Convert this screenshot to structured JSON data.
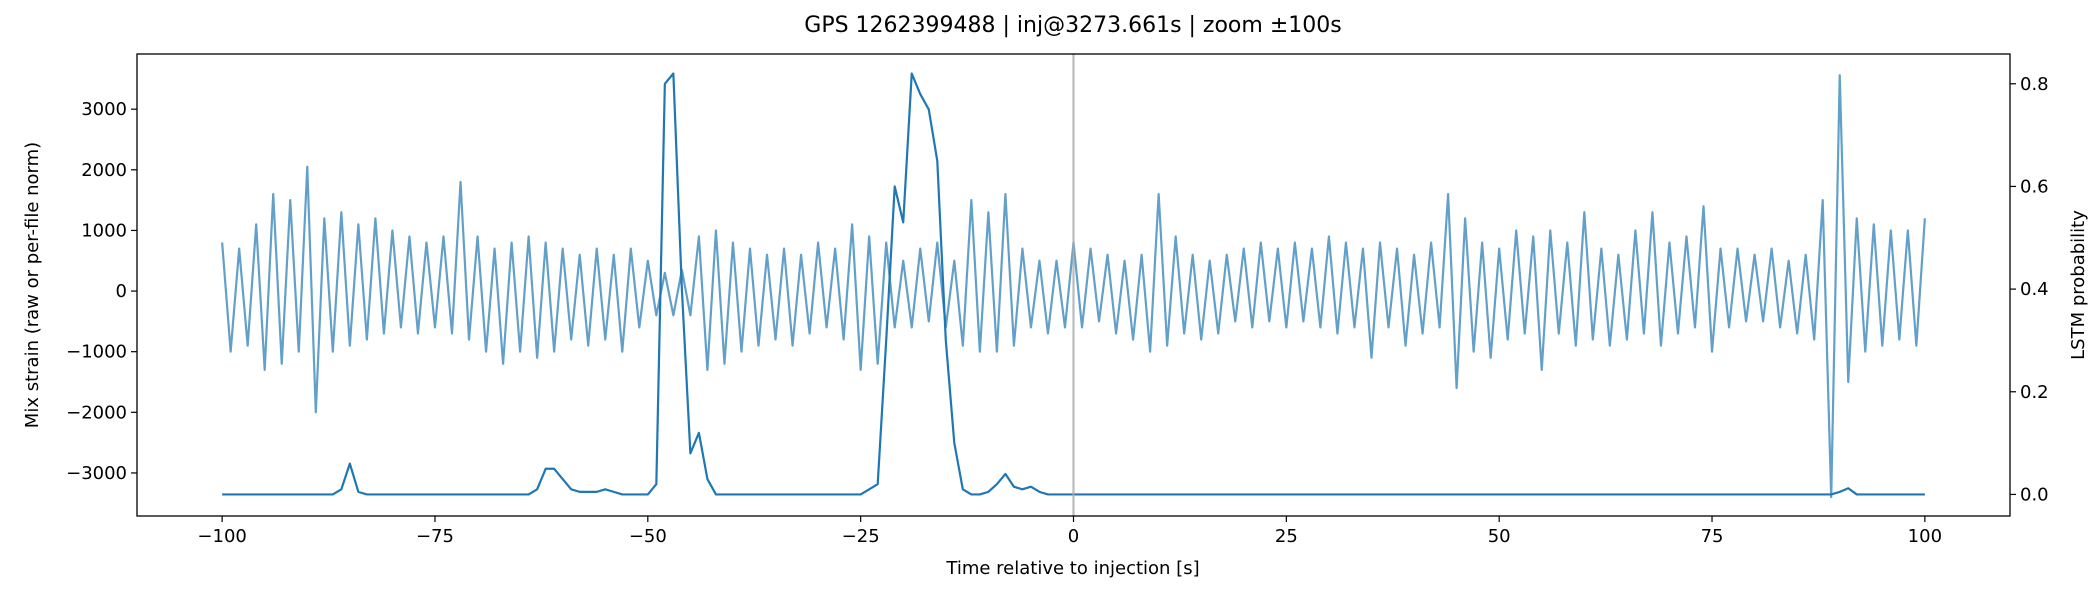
{
  "chart_data": {
    "type": "line",
    "title": "GPS 1262399488 | inj@3273.661s | zoom ±100s",
    "x_label": "Time relative to injection [s]",
    "y_label": "Mix strain (raw or per-file norm)",
    "y2_label": "LSTM probability",
    "x": [
      -100,
      -99,
      -98,
      -97,
      -96,
      -95,
      -94,
      -93,
      -92,
      -91,
      -90,
      -89,
      -88,
      -87,
      -86,
      -85,
      -84,
      -83,
      -82,
      -81,
      -80,
      -79,
      -78,
      -77,
      -76,
      -75,
      -74,
      -73,
      -72,
      -71,
      -70,
      -69,
      -68,
      -67,
      -66,
      -65,
      -64,
      -63,
      -62,
      -61,
      -60,
      -59,
      -58,
      -57,
      -56,
      -55,
      -54,
      -53,
      -52,
      -51,
      -50,
      -49,
      -48,
      -47,
      -46,
      -45,
      -44,
      -43,
      -42,
      -41,
      -40,
      -39,
      -38,
      -37,
      -36,
      -35,
      -34,
      -33,
      -32,
      -31,
      -30,
      -29,
      -28,
      -27,
      -26,
      -25,
      -24,
      -23,
      -22,
      -21,
      -20,
      -19,
      -18,
      -17,
      -16,
      -15,
      -14,
      -13,
      -12,
      -11,
      -10,
      -9,
      -8,
      -7,
      -6,
      -5,
      -4,
      -3,
      -2,
      -1,
      0,
      1,
      2,
      3,
      4,
      5,
      6,
      7,
      8,
      9,
      10,
      11,
      12,
      13,
      14,
      15,
      16,
      17,
      18,
      19,
      20,
      21,
      22,
      23,
      24,
      25,
      26,
      27,
      28,
      29,
      30,
      31,
      32,
      33,
      34,
      35,
      36,
      37,
      38,
      39,
      40,
      41,
      42,
      43,
      44,
      45,
      46,
      47,
      48,
      49,
      50,
      51,
      52,
      53,
      54,
      55,
      56,
      57,
      58,
      59,
      60,
      61,
      62,
      63,
      64,
      65,
      66,
      67,
      68,
      69,
      70,
      71,
      72,
      73,
      74,
      75,
      76,
      77,
      78,
      79,
      80,
      81,
      82,
      83,
      84,
      85,
      86,
      87,
      88,
      89,
      90,
      91,
      92,
      93,
      94,
      95,
      96,
      97,
      98,
      99,
      100
    ],
    "series": [
      {
        "color": "#1f77b4",
        "opacity": 0.7,
        "axis": "y",
        "values": [
          800,
          -1000,
          700,
          -900,
          1100,
          -1300,
          1600,
          -1200,
          1500,
          -1000,
          2050,
          -2000,
          1200,
          -1000,
          1300,
          -900,
          1100,
          -800,
          1200,
          -700,
          1000,
          -600,
          900,
          -700,
          800,
          -600,
          900,
          -700,
          1800,
          -800,
          900,
          -1000,
          700,
          -1200,
          800,
          -1000,
          900,
          -1100,
          800,
          -1000,
          700,
          -800,
          600,
          -900,
          700,
          -800,
          600,
          -1000,
          700,
          -600,
          500,
          -400,
          300,
          -400,
          350,
          -400,
          900,
          -1300,
          1000,
          -1200,
          800,
          -1000,
          700,
          -900,
          600,
          -800,
          700,
          -900,
          600,
          -700,
          800,
          -600,
          700,
          -800,
          1100,
          -1300,
          900,
          -1200,
          800,
          -600,
          500,
          -600,
          700,
          -500,
          800,
          -600,
          500,
          -900,
          1500,
          -1000,
          1300,
          -1000,
          1600,
          -900,
          700,
          -600,
          500,
          -700,
          500,
          -600,
          800,
          -600,
          700,
          -500,
          600,
          -700,
          500,
          -800,
          600,
          -1000,
          1600,
          -900,
          900,
          -700,
          600,
          -800,
          500,
          -700,
          600,
          -500,
          700,
          -600,
          800,
          -500,
          700,
          -600,
          800,
          -500,
          700,
          -600,
          900,
          -700,
          800,
          -600,
          700,
          -1100,
          800,
          -600,
          700,
          -900,
          600,
          -700,
          800,
          -600,
          1600,
          -1600,
          1200,
          -1000,
          800,
          -1100,
          700,
          -800,
          1000,
          -700,
          900,
          -1300,
          1000,
          -700,
          800,
          -900,
          1300,
          -800,
          700,
          -900,
          600,
          -800,
          1000,
          -700,
          1300,
          -900,
          800,
          -700,
          900,
          -600,
          1400,
          -1000,
          700,
          -600,
          700,
          -500,
          600,
          -500,
          700,
          -600,
          500,
          -700,
          600,
          -800,
          1500,
          -3400,
          3560,
          -1500,
          1200,
          -1000,
          1100,
          -900,
          1000,
          -800,
          1000,
          -900,
          1200
        ]
      },
      {
        "color": "#1f77b4",
        "opacity": 1,
        "axis": "y2",
        "values": [
          0,
          0,
          0,
          0,
          0,
          0,
          0,
          0,
          0,
          0,
          0,
          0,
          0,
          0,
          0.01,
          0.06,
          0.005,
          0,
          0,
          0,
          0,
          0,
          0,
          0,
          0,
          0,
          0,
          0,
          0,
          0,
          0,
          0,
          0,
          0,
          0,
          0,
          0,
          0.01,
          0.05,
          0.05,
          0.03,
          0.01,
          0.005,
          0.005,
          0.005,
          0.01,
          0.005,
          0,
          0,
          0,
          0,
          0.02,
          0.8,
          0.82,
          0.4,
          0.08,
          0.12,
          0.03,
          0,
          0,
          0,
          0,
          0,
          0,
          0,
          0,
          0,
          0,
          0,
          0,
          0,
          0,
          0,
          0,
          0,
          0,
          0.01,
          0.02,
          0.3,
          0.6,
          0.53,
          0.82,
          0.78,
          0.75,
          0.65,
          0.3,
          0.1,
          0.01,
          0,
          0,
          0.005,
          0.02,
          0.04,
          0.015,
          0.01,
          0.015,
          0.005,
          0,
          0,
          0,
          0,
          0,
          0,
          0,
          0,
          0,
          0,
          0,
          0,
          0,
          0,
          0,
          0,
          0,
          0,
          0,
          0,
          0,
          0,
          0,
          0,
          0,
          0,
          0,
          0,
          0,
          0,
          0,
          0,
          0,
          0,
          0,
          0,
          0,
          0,
          0,
          0,
          0,
          0,
          0,
          0,
          0,
          0,
          0,
          0,
          0,
          0,
          0,
          0,
          0,
          0,
          0,
          0,
          0,
          0,
          0,
          0,
          0,
          0,
          0,
          0,
          0,
          0,
          0,
          0,
          0,
          0,
          0,
          0,
          0,
          0,
          0,
          0,
          0,
          0,
          0,
          0,
          0,
          0,
          0,
          0,
          0,
          0,
          0,
          0,
          0,
          0,
          0,
          0,
          0,
          0.005,
          0.012,
          0,
          0,
          0,
          0,
          0,
          0,
          0,
          0,
          0
        ]
      }
    ],
    "vlines": [
      0
    ],
    "vline_color": "#aaaaaa",
    "xlim": [
      -110,
      110
    ],
    "xticks": [
      {
        "value": -100,
        "label": "−100"
      },
      {
        "value": -75,
        "label": "−75"
      },
      {
        "value": -50,
        "label": "−50"
      },
      {
        "value": -25,
        "label": "−25"
      },
      0,
      25,
      50,
      75,
      100
    ],
    "ylim": [
      -3710,
      3910
    ],
    "yticks": [
      {
        "value": -3000,
        "label": "−3000"
      },
      {
        "value": -2000,
        "label": "−2000"
      },
      {
        "value": -1000,
        "label": "−1000"
      },
      0,
      1000,
      2000,
      3000
    ],
    "y2lim": [
      -0.042,
      0.858
    ],
    "y2ticks": [
      {
        "value": 0,
        "label": "0.0"
      },
      0.2,
      0.4,
      0.6,
      0.8
    ],
    "grid": false
  }
}
